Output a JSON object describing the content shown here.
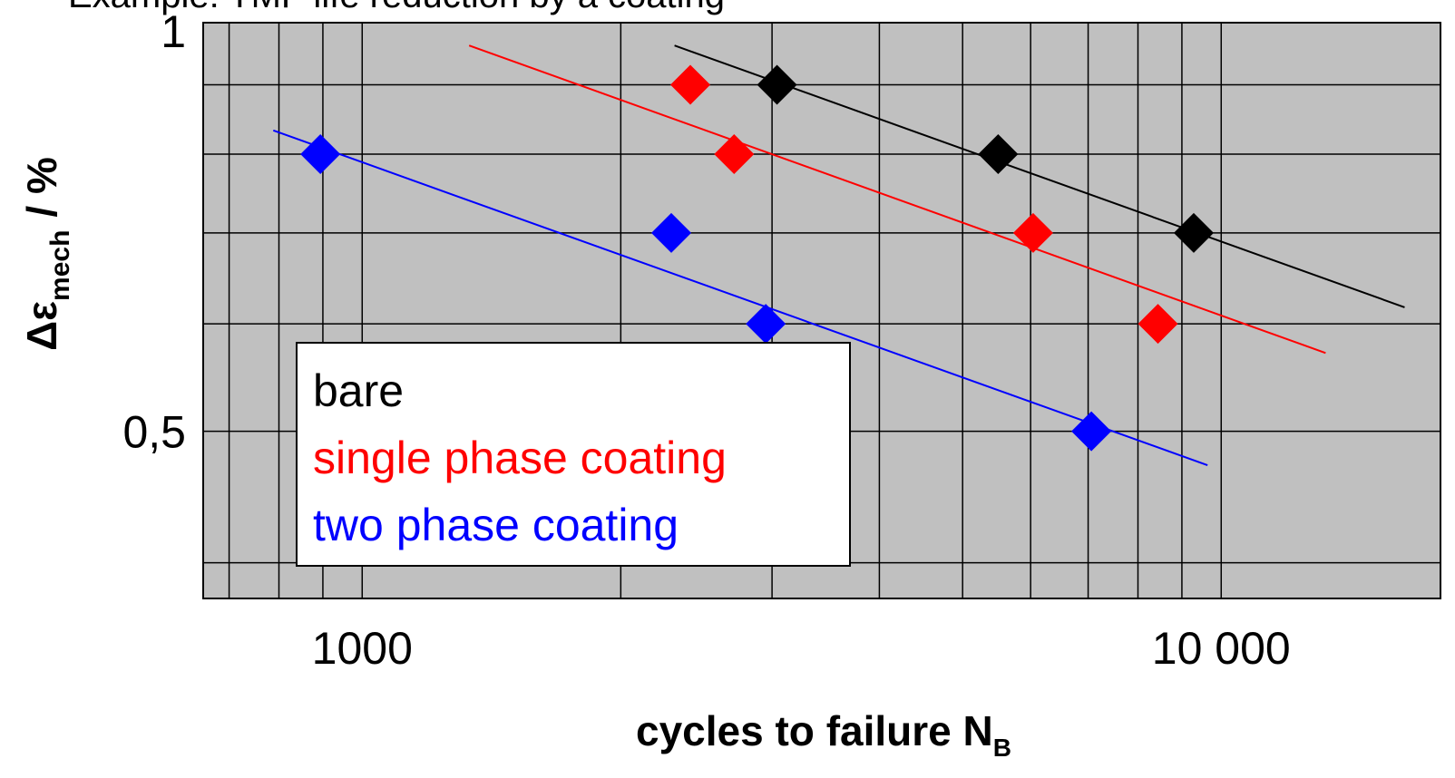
{
  "chart_data": {
    "type": "scatter",
    "title": "Example: TMF life reduction by a coating",
    "xlabel": {
      "main": "cycles to failure N",
      "sub": "B"
    },
    "ylabel": {
      "main": "Δε",
      "sub": "mech",
      "unit": "/ %"
    },
    "xscale": "log",
    "yscale": "log",
    "xlim": [
      653,
      18000
    ],
    "ylim": [
      0.3765,
      1
    ],
    "xticks": [
      1000,
      {
        "value": 10000,
        "label": "10 000"
      }
    ],
    "xminor_ticks": [
      700,
      800,
      900,
      2000,
      3000,
      4000,
      5000,
      6000,
      7000,
      8000,
      9000
    ],
    "yticks": [
      {
        "value": 0.5,
        "label": "0,5"
      },
      1
    ],
    "yminor_ticks": [
      0.4,
      0.6,
      0.7,
      0.8,
      0.9
    ],
    "grid": true,
    "legend": "lower left",
    "series": [
      {
        "name": "bare",
        "color": "#000000",
        "x": [
          3040,
          5500,
          9290
        ],
        "values": [
          0.9,
          0.8,
          0.7
        ],
        "fit": {
          "x": [
            2310,
            16350
          ],
          "values": [
            0.962,
            0.617
          ]
        }
      },
      {
        "name": "single phase coating",
        "color": "#ff0000",
        "x": [
          2410,
          2710,
          6040,
          8440
        ],
        "values": [
          0.9,
          0.8,
          0.7,
          0.6
        ],
        "fit": {
          "x": [
            1332,
            13230
          ],
          "values": [
            0.962,
            0.571
          ]
        }
      },
      {
        "name": "two phase coating",
        "color": "#0000ff",
        "x": [
          894,
          2290,
          2950,
          7060
        ],
        "values": [
          0.8,
          0.7,
          0.6,
          0.5
        ],
        "fit": {
          "x": [
            788,
            9640
          ],
          "values": [
            0.833,
            0.472
          ]
        }
      }
    ]
  }
}
